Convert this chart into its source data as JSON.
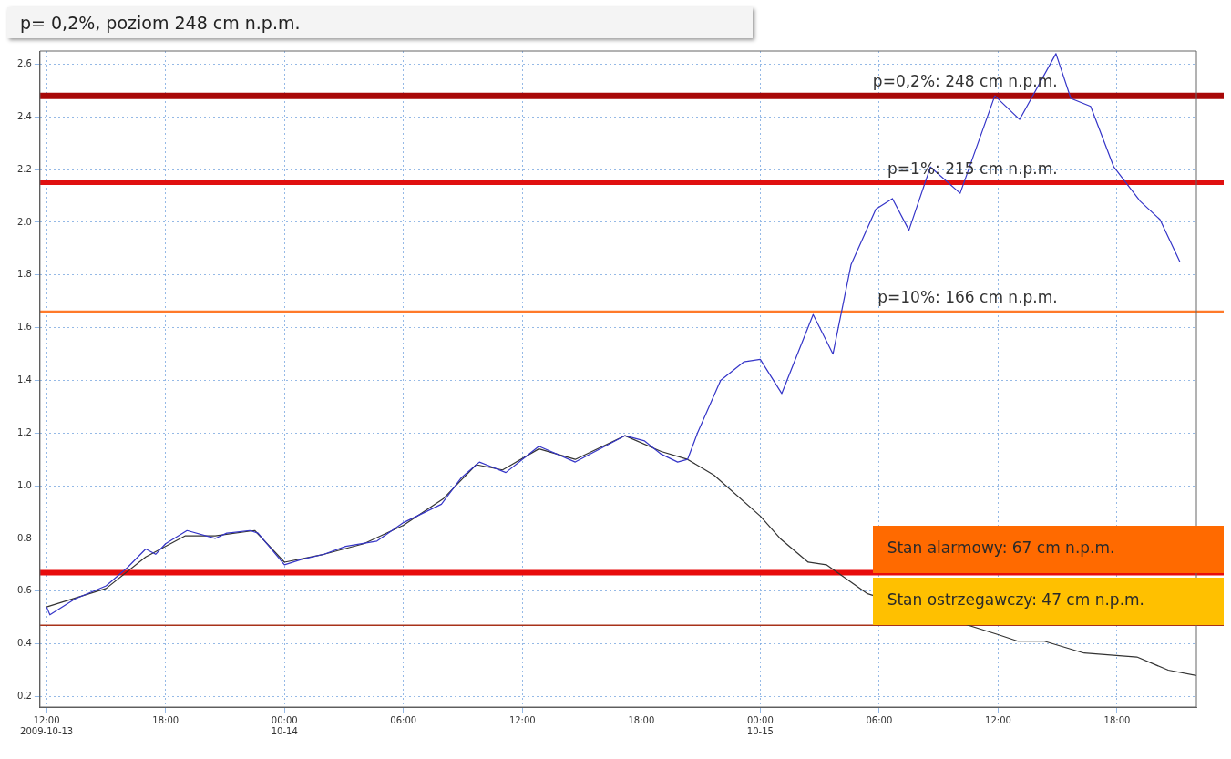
{
  "chart_data": {
    "type": "line",
    "title": "p= 0,2%, poziom 248 cm n.p.m.",
    "xlim": [
      "2009-10-13T11:40",
      "2009-10-15T22:00"
    ],
    "xticks": [
      {
        "value": "2009-10-13T12:00",
        "label": "12:00\n2009-10-13"
      },
      {
        "value": "2009-10-13T18:00",
        "label": "18:00"
      },
      {
        "value": "2009-10-14T00:00",
        "label": "00:00\n10-14"
      },
      {
        "value": "2009-10-14T06:00",
        "label": "06:00"
      },
      {
        "value": "2009-10-14T12:00",
        "label": "12:00"
      },
      {
        "value": "2009-10-14T18:00",
        "label": "18:00"
      },
      {
        "value": "2009-10-15T00:00",
        "label": "00:00\n10-15"
      },
      {
        "value": "2009-10-15T06:00",
        "label": "06:00"
      },
      {
        "value": "2009-10-15T12:00",
        "label": "12:00"
      },
      {
        "value": "2009-10-15T18:00",
        "label": "18:00"
      }
    ],
    "ylim": [
      0.16,
      2.65
    ],
    "yticks": [
      0.2,
      0.4,
      0.6,
      0.8,
      {
        "value": 1,
        "label": "1.0"
      },
      1.2,
      1.4,
      1.6,
      1.8,
      {
        "value": 2,
        "label": "2.0"
      },
      2.2,
      2.4,
      2.6
    ],
    "grid": true,
    "marker": "none",
    "line_style": "solid",
    "series": [
      {
        "color": "#3535c8",
        "x": [
          "2009-10-13T12:00",
          "2009-10-13T12:10",
          "2009-10-13T13:25",
          "2009-10-13T15:00",
          "2009-10-13T16:05",
          "2009-10-13T17:00",
          "2009-10-13T17:30",
          "2009-10-13T18:00",
          "2009-10-13T19:05",
          "2009-10-13T20:30",
          "2009-10-13T21:05",
          "2009-10-13T22:15",
          "2009-10-13T22:40",
          "2009-10-14T00:00",
          "2009-10-14T00:50",
          "2009-10-14T02:00",
          "2009-10-14T03:05",
          "2009-10-14T04:40",
          "2009-10-14T06:00",
          "2009-10-14T07:55",
          "2009-10-14T08:55",
          "2009-10-14T09:50",
          "2009-10-14T11:10",
          "2009-10-14T12:50",
          "2009-10-14T14:40",
          "2009-10-14T17:10",
          "2009-10-14T18:10",
          "2009-10-14T19:00",
          "2009-10-14T19:50",
          "2009-10-14T20:20",
          "2009-10-14T20:50",
          "2009-10-14T22:00",
          "2009-10-14T23:10",
          "2009-10-15T00:00",
          "2009-10-15T01:05",
          "2009-10-15T02:40",
          "2009-10-15T03:40",
          "2009-10-15T04:35",
          "2009-10-15T05:50",
          "2009-10-15T06:40",
          "2009-10-15T07:30",
          "2009-10-15T08:35",
          "2009-10-15T10:05",
          "2009-10-15T11:50",
          "2009-10-15T13:05",
          "2009-10-15T14:55",
          "2009-10-15T15:40",
          "2009-10-15T16:40",
          "2009-10-15T17:50",
          "2009-10-15T19:10",
          "2009-10-15T20:10",
          "2009-10-15T21:10"
        ],
        "values": [
          0.54,
          0.51,
          0.57,
          0.62,
          0.69,
          0.76,
          0.74,
          0.78,
          0.83,
          0.8,
          0.82,
          0.83,
          0.82,
          0.7,
          0.72,
          0.74,
          0.77,
          0.79,
          0.86,
          0.93,
          1.03,
          1.09,
          1.05,
          1.15,
          1.09,
          1.19,
          1.17,
          1.12,
          1.09,
          1.1,
          1.2,
          1.4,
          1.47,
          1.48,
          1.35,
          1.65,
          1.5,
          1.84,
          2.05,
          2.09,
          1.97,
          2.21,
          2.11,
          2.48,
          2.39,
          2.64,
          2.47,
          2.44,
          2.21,
          2.08,
          2.01,
          1.85
        ]
      },
      {
        "color": "#333333",
        "x": [
          "2009-10-13T12:00",
          "2009-10-13T15:00",
          "2009-10-13T17:00",
          "2009-10-13T19:00",
          "2009-10-13T20:30",
          "2009-10-13T22:30",
          "2009-10-14T00:00",
          "2009-10-14T02:00",
          "2009-10-14T04:00",
          "2009-10-14T06:00",
          "2009-10-14T08:00",
          "2009-10-14T09:40",
          "2009-10-14T11:00",
          "2009-10-14T12:50",
          "2009-10-14T14:40",
          "2009-10-14T17:10",
          "2009-10-14T19:00",
          "2009-10-14T20:20",
          "2009-10-14T21:40",
          "2009-10-15T00:00",
          "2009-10-15T01:00",
          "2009-10-15T02:25",
          "2009-10-15T03:20",
          "2009-10-15T05:25",
          "2009-10-15T12:00",
          "2009-10-15T13:00",
          "2009-10-15T14:20",
          "2009-10-15T16:20",
          "2009-10-15T19:00",
          "2009-10-15T20:35",
          "2009-10-15T22:00"
        ],
        "values": [
          0.54,
          0.61,
          0.73,
          0.81,
          0.81,
          0.83,
          0.71,
          0.74,
          0.78,
          0.85,
          0.95,
          1.08,
          1.06,
          1.14,
          1.1,
          1.19,
          1.13,
          1.1,
          1.04,
          0.885,
          0.8,
          0.71,
          0.7,
          0.59,
          0.435,
          0.41,
          0.41,
          0.365,
          0.35,
          0.3,
          0.28
        ]
      }
    ],
    "ref_lines": [
      {
        "axis": "y",
        "value": 2.48,
        "label": "p=0,2%: 248 cm n.p.m.",
        "color": "#a80808"
      },
      {
        "axis": "y",
        "value": 2.15,
        "label": "p=1%: 215 cm n.p.m.",
        "color": "#e01010"
      },
      {
        "axis": "y",
        "value": 1.66,
        "label": "p=10%: 166 cm n.p.m.",
        "color": "#ff7a2a"
      },
      {
        "axis": "y",
        "value": 0.67,
        "label": "Stan alarmowy: 67 cm n.p.m.",
        "color": "#e80c0c"
      },
      {
        "axis": "y",
        "value": 0.47,
        "label": "Stan ostrzegawczy: 47 cm n.p.m.",
        "color": "#a8321a"
      }
    ]
  }
}
